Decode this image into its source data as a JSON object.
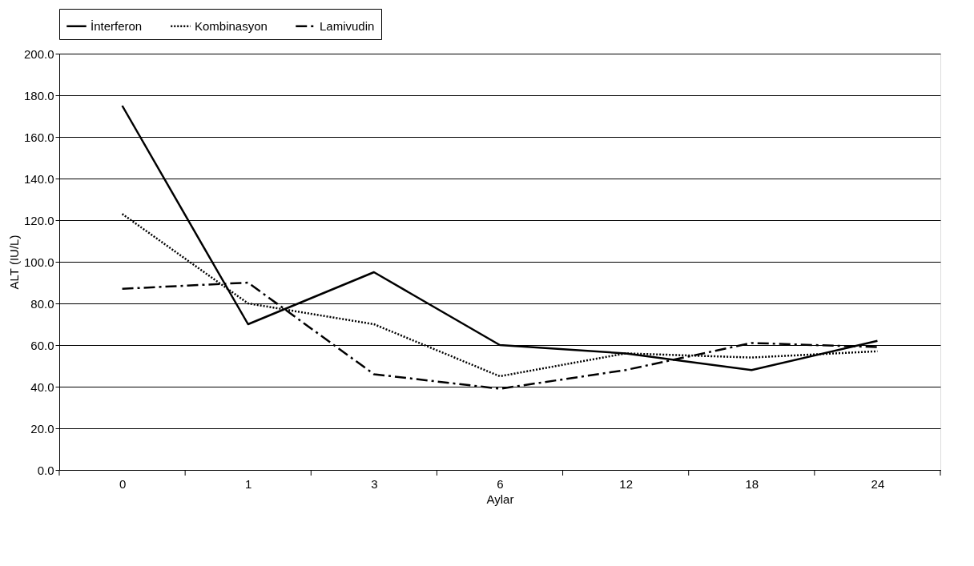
{
  "chart_data": {
    "type": "line",
    "xlabel": "Aylar",
    "ylabel": "ALT (IU/L)",
    "categories": [
      "0",
      "1",
      "3",
      "6",
      "12",
      "18",
      "24"
    ],
    "series": [
      {
        "name": "İnterferon",
        "color": "#000000",
        "line_style": "solid",
        "values": [
          175,
          70,
          95,
          60,
          56,
          48,
          62
        ]
      },
      {
        "name": "Kombinasyon",
        "color": "#000000",
        "line_style": "dotted",
        "values": [
          123,
          80,
          70,
          45,
          56,
          54,
          57
        ]
      },
      {
        "name": "Lamivudin",
        "color": "#000000",
        "line_style": "dashed",
        "values": [
          87,
          90,
          46,
          39,
          48,
          61,
          59
        ]
      }
    ],
    "ylim": [
      0,
      200
    ],
    "yticks": [
      {
        "value": 0,
        "label": "0.0"
      },
      {
        "value": 20,
        "label": "20.0"
      },
      {
        "value": 40,
        "label": "40.0"
      },
      {
        "value": 60,
        "label": "60.0"
      },
      {
        "value": 80,
        "label": "80.0"
      },
      {
        "value": 100,
        "label": "100.0"
      },
      {
        "value": 120,
        "label": "120.0"
      },
      {
        "value": 140,
        "label": "140.0"
      },
      {
        "value": 160,
        "label": "160.0"
      },
      {
        "value": 180,
        "label": "180.0"
      },
      {
        "value": 200,
        "label": "200.0"
      }
    ],
    "grid": "y",
    "legend": "top",
    "marker": "none"
  }
}
